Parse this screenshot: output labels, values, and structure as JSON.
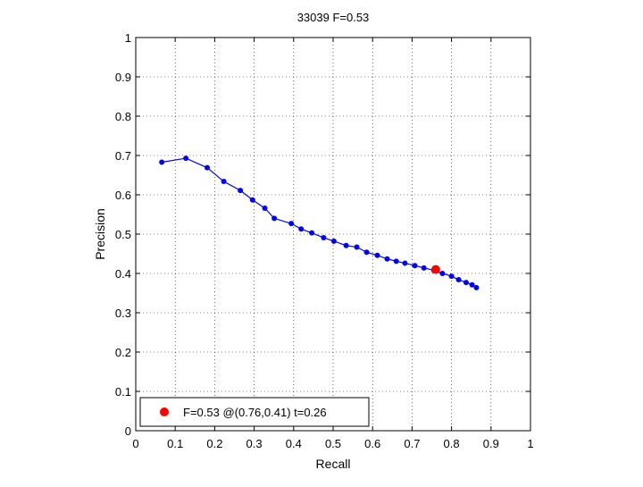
{
  "chart_data": {
    "type": "line",
    "title": "33039 F=0.53",
    "xlabel": "Recall",
    "ylabel": "Precision",
    "xlim": [
      0,
      1
    ],
    "ylim": [
      0,
      1
    ],
    "grid": true,
    "x_ticks": [
      0,
      0.1,
      0.2,
      0.3,
      0.4,
      0.5,
      0.6,
      0.7,
      0.8,
      0.9,
      1
    ],
    "x_tick_labels": [
      "0",
      "0.1",
      "0.2",
      "0.3",
      "0.4",
      "0.5",
      "0.6",
      "0.7",
      "0.8",
      "0.9",
      "1"
    ],
    "y_ticks": [
      0,
      0.1,
      0.2,
      0.3,
      0.4,
      0.5,
      0.6,
      0.7,
      0.8,
      0.9,
      1
    ],
    "y_tick_labels": [
      "0",
      "0.1",
      "0.2",
      "0.3",
      "0.4",
      "0.5",
      "0.6",
      "0.7",
      "0.8",
      "0.9",
      "1"
    ],
    "series": [
      {
        "color": "#0000ff",
        "x": [
          0.066,
          0.127,
          0.181,
          0.223,
          0.265,
          0.296,
          0.327,
          0.351,
          0.394,
          0.419,
          0.446,
          0.476,
          0.502,
          0.533,
          0.56,
          0.585,
          0.612,
          0.637,
          0.66,
          0.682,
          0.707,
          0.73,
          0.755,
          0.777,
          0.8,
          0.818,
          0.837,
          0.852,
          0.863
        ],
        "y": [
          0.683,
          0.693,
          0.669,
          0.634,
          0.611,
          0.587,
          0.566,
          0.54,
          0.527,
          0.513,
          0.503,
          0.491,
          0.482,
          0.471,
          0.467,
          0.454,
          0.446,
          0.437,
          0.431,
          0.426,
          0.42,
          0.414,
          0.408,
          0.4,
          0.393,
          0.384,
          0.377,
          0.371,
          0.364
        ]
      }
    ],
    "highlight_point": {
      "x": 0.76,
      "y": 0.41,
      "color": "#ff0000"
    },
    "legend": {
      "position": "bottom-left",
      "label": "F=0.53 @(0.76,0.41) t=0.26",
      "marker_color": "#ff0000"
    }
  }
}
